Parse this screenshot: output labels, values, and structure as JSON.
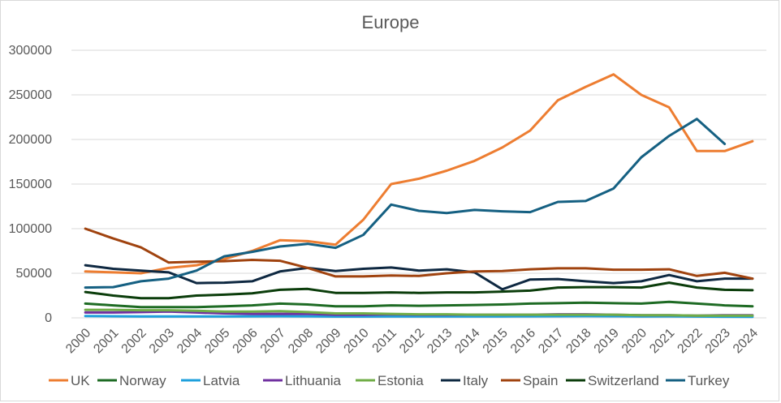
{
  "chart_data": {
    "type": "line",
    "title": "Europe",
    "xlabel": "",
    "ylabel": "",
    "ylim": [
      0,
      300000
    ],
    "yticks": [
      0,
      50000,
      100000,
      150000,
      200000,
      250000,
      300000
    ],
    "ytick_labels": [
      "0",
      "50000",
      "100000",
      "150000",
      "200000",
      "250000",
      "300000"
    ],
    "grid": true,
    "legend_position": "bottom",
    "categories": [
      "2000",
      "2001",
      "2002",
      "2003",
      "2004",
      "2005",
      "2006",
      "2007",
      "2008",
      "2009",
      "2010",
      "2011",
      "2012",
      "2013",
      "2014",
      "2015",
      "2016",
      "2017",
      "2018",
      "2019",
      "2020",
      "2021",
      "2022",
      "2023",
      "2024"
    ],
    "series": [
      {
        "name": "UK",
        "color": "#ed7d31",
        "values": [
          52000,
          51000,
          50000,
          56000,
          59000,
          66000,
          75000,
          87000,
          86000,
          82000,
          110000,
          150000,
          156000,
          165000,
          176000,
          191000,
          210000,
          244000,
          259000,
          273000,
          250000,
          236000,
          187000,
          187000,
          198000
        ]
      },
      {
        "name": "Norway",
        "color": "#1e6b24",
        "values": [
          16000,
          14000,
          12000,
          12000,
          12000,
          13000,
          14000,
          16000,
          15000,
          13000,
          13000,
          14000,
          13500,
          14000,
          14500,
          15000,
          16000,
          16500,
          17000,
          16500,
          16000,
          18000,
          16000,
          14000,
          13000
        ]
      },
      {
        "name": "Latvia",
        "color": "#1ea0dc",
        "values": [
          2000,
          1800,
          1600,
          1600,
          1600,
          1600,
          1700,
          1800,
          1700,
          1500,
          1500,
          1600,
          1600,
          1600,
          1600,
          1600,
          1700,
          1800,
          1900,
          1800,
          1600,
          1700,
          1500,
          1300,
          1200
        ]
      },
      {
        "name": "Lithuania",
        "color": "#7030a0",
        "values": [
          6000,
          6000,
          6500,
          7000,
          6000,
          5000,
          4500,
          4500,
          4500,
          3500,
          3500,
          4000,
          3500,
          3500,
          3500,
          3500,
          3500,
          4000,
          4000,
          3500,
          3000,
          3000,
          2500,
          3000,
          3000
        ]
      },
      {
        "name": "Estonia",
        "color": "#70ad47",
        "values": [
          9000,
          9000,
          8500,
          8500,
          8000,
          7000,
          7000,
          7500,
          6500,
          5000,
          5000,
          4500,
          4000,
          4000,
          3500,
          3500,
          3500,
          3500,
          3500,
          3500,
          3000,
          3000,
          2500,
          2500,
          2500
        ]
      },
      {
        "name": "Italy",
        "color": "#0e2841",
        "values": [
          59000,
          55000,
          53000,
          51000,
          39000,
          39500,
          41000,
          52000,
          56000,
          52500,
          55000,
          56500,
          53000,
          54500,
          51000,
          32000,
          43000,
          43500,
          41000,
          39000,
          41000,
          48000,
          41000,
          44000,
          44000
        ]
      },
      {
        "name": "Spain",
        "color": "#a0430f",
        "values": [
          100000,
          89000,
          79000,
          62000,
          63000,
          63500,
          65000,
          64000,
          56000,
          46500,
          46500,
          47500,
          47000,
          50000,
          52000,
          52500,
          54500,
          55500,
          55500,
          54000,
          54000,
          54500,
          47000,
          50500,
          44000
        ]
      },
      {
        "name": "Switzerland",
        "color": "#0b3d0b",
        "values": [
          29000,
          25000,
          22000,
          22000,
          25000,
          26000,
          27500,
          31500,
          32500,
          28000,
          28000,
          28500,
          28000,
          28500,
          28500,
          29500,
          30500,
          34000,
          34500,
          34500,
          34000,
          39500,
          34000,
          31500,
          31000
        ]
      },
      {
        "name": "Turkey",
        "color": "#156082",
        "values": [
          34000,
          34500,
          41000,
          44000,
          53000,
          69000,
          74000,
          80000,
          83000,
          78500,
          93000,
          127000,
          120000,
          117500,
          121000,
          119500,
          118500,
          130000,
          131000,
          145000,
          180000,
          204000,
          223000,
          195000,
          null
        ]
      }
    ]
  }
}
